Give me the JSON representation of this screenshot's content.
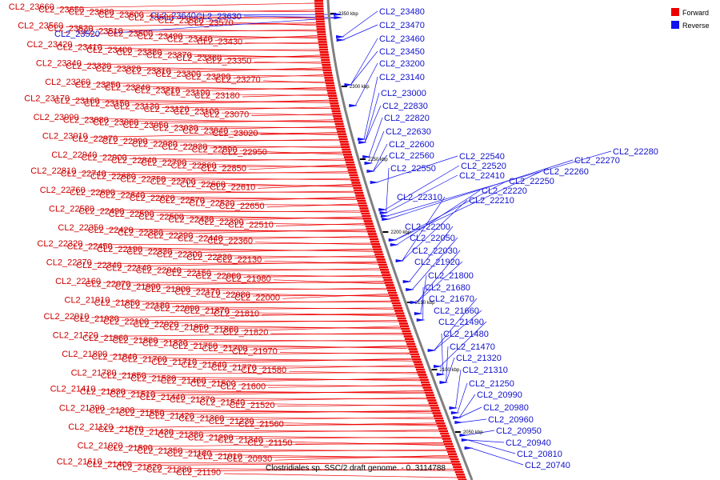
{
  "legend": {
    "items": [
      {
        "label": "Forward",
        "color": "#ee0000"
      },
      {
        "label": "Reverse",
        "color": "#1111ee"
      }
    ]
  },
  "caption": "Clostridiales sp. SSC/2 draft genome. - 0..3114788",
  "ticks": [
    "2350 kbp",
    "2300 kbp",
    "2250 kbp",
    "2200 kbp",
    "2150 kbp",
    "2100 kbp",
    "2050 kbp"
  ],
  "forward_labels": [
    "CL2_23660",
    "CL2_23650",
    "CL2_23680",
    "CL2_23600",
    "CL2_23590",
    "CL2_23580",
    "CL2_23570",
    "CL2_23560",
    "CL2_23530",
    "CL2_23510",
    "CL2_23500",
    "CL2_23490",
    "CL2_23440",
    "CL2_23430",
    "CL2_23420",
    "CL2_23410",
    "CL2_23400",
    "CL2_23380",
    "CL2_23370",
    "CL2_23360",
    "CL2_23350",
    "CL2_23340",
    "CL2_23330",
    "CL2_23320",
    "CL2_23310",
    "CL2_23300",
    "CL2_23290",
    "CL2_23270",
    "CL2_23260",
    "CL2_23250",
    "CL2_23240",
    "CL2_23210",
    "CL2_23190",
    "CL2_23180",
    "CL2_23170",
    "CL2_23160",
    "CL2_23150",
    "CL2_23130",
    "CL2_23120",
    "CL2_23100",
    "CL2_23070",
    "CL2_23090",
    "CL2_23080",
    "CL2_23060",
    "CL2_23050",
    "CL2_23030",
    "CL2_23040",
    "CL2_23020",
    "CL2_23010",
    "CL2_22970",
    "CL2_22990",
    "CL2_22980",
    "CL2_22930",
    "CL2_22890",
    "CL2_22950",
    "CL2_22940",
    "CL2_22900",
    "CL2_22840",
    "CL2_22790",
    "CL2_22860",
    "CL2_22850",
    "CL2_22810",
    "CL2_22740",
    "CL2_22680",
    "CL2_22750",
    "CL2_22700",
    "CL2_22660",
    "CL2_22610",
    "CL2_22760",
    "CL2_22690",
    "CL2_22640",
    "CL2_22620",
    "CL2_22570",
    "CL2_22530",
    "CL2_22650",
    "CL2_22580",
    "CL2_22490",
    "CL2_22590",
    "CL2_22500",
    "CL2_22430",
    "CL2_22390",
    "CL2_22510",
    "CL2_22350",
    "CL2_22420",
    "CL2_22380",
    "CL2_22290",
    "CL2_22440",
    "CL2_22360",
    "CL2_22320",
    "CL2_22450",
    "CL2_22190",
    "CL2_22330",
    "CL2_22300",
    "CL2_22230",
    "CL2_22130",
    "CL2_22370",
    "CL2_22340",
    "CL2_22140",
    "CL2_22040",
    "CL2_22150",
    "CL2_22060",
    "CL2_21980",
    "CL2_22160",
    "CL2_22070",
    "CL2_21990",
    "CL2_21900",
    "CL2_22170",
    "CL2_22080",
    "CL2_22000",
    "CL2_21910",
    "CL2_21850",
    "CL2_22180",
    "CL2_22090",
    "CL2_21870",
    "CL2_21810",
    "CL2_22010",
    "CL2_21930",
    "CL2_22100",
    "CL2_22020",
    "CL2_21950",
    "CL2_21860",
    "CL2_21820",
    "CL2_21720",
    "CL2_21960",
    "CL2_21880",
    "CL2_21830",
    "CL2_21750",
    "CL2_21700",
    "CL2_21970",
    "CL2_21890",
    "CL2_21840",
    "CL2_21760",
    "CL2_21710",
    "CL2_21640",
    "CL2_21770",
    "CL2_21580",
    "CL2_21780",
    "CL2_21650",
    "CL2_21530",
    "CL2_21460",
    "CL2_21500",
    "CL2_21600",
    "CL2_21410",
    "CL2_21630",
    "CL2_21510",
    "CL2_21440",
    "CL2_21370",
    "CL2_21540",
    "CL2_21520",
    "CL2_21390",
    "CL2_21300",
    "CL2_21550",
    "CL2_21420",
    "CL2_21360",
    "CL2_21230",
    "CL2_21560",
    "CL2_21120",
    "CL2_21570",
    "CL2_21430",
    "CL2_21380",
    "CL2_21290",
    "CL2_21340",
    "CL2_21150",
    "CL2_21020",
    "CL2_21590",
    "CL2_21350",
    "CL2_21160",
    "CL2_21010",
    "CL2_20930",
    "CL2_21610",
    "CL2_21400",
    "CL2_21620",
    "CL2_21280",
    "CL2_21190"
  ],
  "reverse_labels": [
    "CL2_23640",
    "CL2_23630",
    "CL2_23520",
    "CL2_23480",
    "CL2_23470",
    "CL2_23460",
    "CL2_23450",
    "CL2_23200",
    "CL2_23140",
    "CL2_23000",
    "CL2_22830",
    "CL2_22820",
    "CL2_22630",
    "CL2_22600",
    "CL2_22560",
    "CL2_22540",
    "CL2_22520",
    "CL2_22550",
    "CL2_22410",
    "CL2_22280",
    "CL2_22270",
    "CL2_22260",
    "CL2_22250",
    "CL2_22220",
    "CL2_22210",
    "CL2_22310",
    "CL2_22200",
    "CL2_22050",
    "CL2_22030",
    "CL2_21920",
    "CL2_21800",
    "CL2_21680",
    "CL2_21670",
    "CL2_21660",
    "CL2_21490",
    "CL2_21480",
    "CL2_21470",
    "CL2_21320",
    "CL2_21310",
    "CL2_21250",
    "CL2_20990",
    "CL2_20980",
    "CL2_20960",
    "CL2_20950",
    "CL2_20940",
    "CL2_20810",
    "CL2_20740"
  ]
}
